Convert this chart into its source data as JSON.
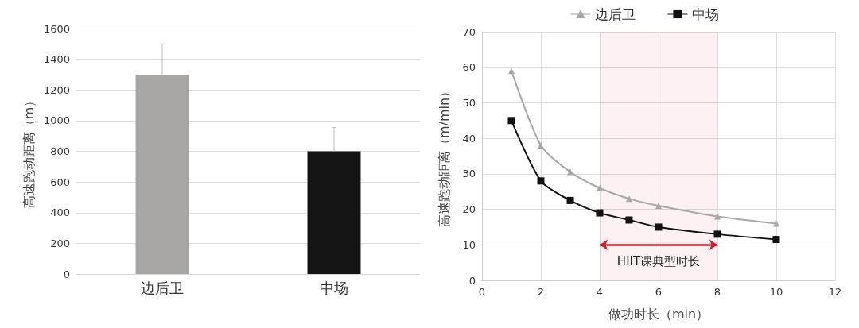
{
  "chart_data": [
    {
      "type": "bar",
      "ylabel": "高速跑动距离（m）",
      "categories": [
        "边后卫",
        "中场"
      ],
      "values": [
        1300,
        800
      ],
      "colors": [
        "#a8a5a5",
        "#141414"
      ],
      "errors": [
        [
          1300,
          1500
        ],
        [
          800,
          955
        ]
      ],
      "ylim": [
        0,
        1600
      ],
      "yticks": [
        0,
        200,
        400,
        600,
        800,
        1000,
        1200,
        1400,
        1600
      ],
      "grid": "y",
      "legend": false
    },
    {
      "type": "line",
      "xlabel": "做功时长（min）",
      "ylabel": "高速跑动距离（m/min）",
      "legend": "top",
      "grid": true,
      "series": [
        {
          "name": "边后卫",
          "color": "#a8a8a8",
          "marker": "triangle",
          "x": [
            1,
            2,
            3,
            4,
            5,
            6,
            8,
            10
          ],
          "values": [
            59,
            38,
            30.5,
            26,
            23,
            21,
            18,
            16
          ]
        },
        {
          "name": "中场",
          "color": "#111111",
          "marker": "square",
          "x": [
            1,
            2,
            3,
            4,
            5,
            6,
            8,
            10
          ],
          "values": [
            45,
            28,
            22.5,
            19,
            17,
            15,
            13,
            11.5
          ]
        }
      ],
      "bands": [
        {
          "axis": "x",
          "from": 4,
          "to": 8,
          "label": "HIIT课典型时长",
          "color": "#d0202e"
        }
      ],
      "xlim": [
        0,
        12
      ],
      "xticks": [
        0,
        2,
        4,
        6,
        8,
        10,
        12
      ],
      "ylim": [
        0,
        70
      ],
      "yticks": [
        0,
        10,
        20,
        30,
        40,
        50,
        60,
        70
      ]
    }
  ]
}
